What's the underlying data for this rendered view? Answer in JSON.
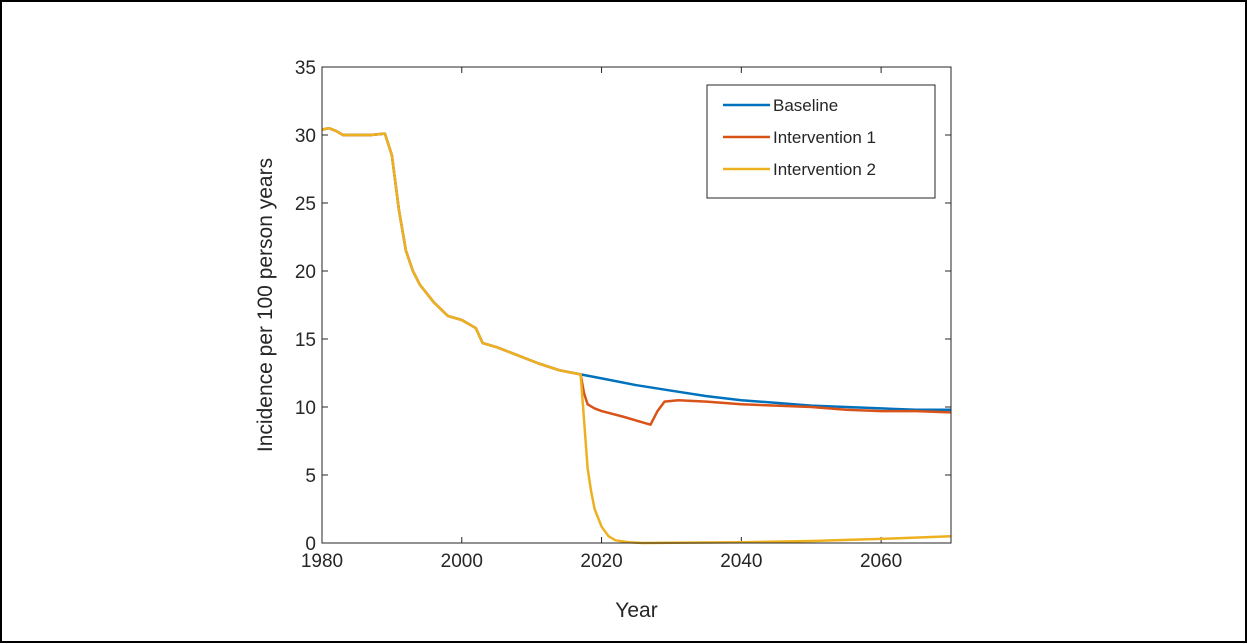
{
  "chart_data": {
    "type": "line",
    "title": "",
    "xlabel": "Year",
    "ylabel": "Incidence per 100 person years",
    "xlim": [
      1980,
      2070
    ],
    "ylim": [
      0,
      35
    ],
    "x_ticks": [
      1980,
      2000,
      2020,
      2040,
      2060
    ],
    "y_ticks": [
      0,
      5,
      10,
      15,
      20,
      25,
      30,
      35
    ],
    "x_tick_labels": [
      "1980",
      "2000",
      "2020",
      "2040",
      "2060"
    ],
    "y_tick_labels": [
      "0",
      "5",
      "10",
      "15",
      "20",
      "25",
      "30",
      "35"
    ],
    "grid": false,
    "legend_position": "top-right",
    "series": [
      {
        "name": "Baseline",
        "color": "#0072BD",
        "points": [
          [
            1980,
            30.4
          ],
          [
            1981,
            30.5
          ],
          [
            1982,
            30.3
          ],
          [
            1983,
            30.0
          ],
          [
            1985,
            30.0
          ],
          [
            1987,
            30.0
          ],
          [
            1989,
            30.1
          ],
          [
            1990,
            28.5
          ],
          [
            1991,
            24.5
          ],
          [
            1992,
            21.5
          ],
          [
            1993,
            20.0
          ],
          [
            1994,
            19.0
          ],
          [
            1996,
            17.7
          ],
          [
            1998,
            16.7
          ],
          [
            2000,
            16.4
          ],
          [
            2002,
            15.8
          ],
          [
            2003,
            14.7
          ],
          [
            2005,
            14.4
          ],
          [
            2008,
            13.8
          ],
          [
            2011,
            13.2
          ],
          [
            2014,
            12.7
          ],
          [
            2017,
            12.4
          ],
          [
            2020,
            12.1
          ],
          [
            2025,
            11.6
          ],
          [
            2030,
            11.2
          ],
          [
            2035,
            10.8
          ],
          [
            2040,
            10.5
          ],
          [
            2045,
            10.3
          ],
          [
            2050,
            10.1
          ],
          [
            2055,
            10.0
          ],
          [
            2060,
            9.9
          ],
          [
            2065,
            9.8
          ],
          [
            2070,
            9.8
          ]
        ]
      },
      {
        "name": "Intervention 1",
        "color": "#D95319",
        "points": [
          [
            1980,
            30.4
          ],
          [
            1981,
            30.5
          ],
          [
            1982,
            30.3
          ],
          [
            1983,
            30.0
          ],
          [
            1985,
            30.0
          ],
          [
            1987,
            30.0
          ],
          [
            1989,
            30.1
          ],
          [
            1990,
            28.5
          ],
          [
            1991,
            24.5
          ],
          [
            1992,
            21.5
          ],
          [
            1993,
            20.0
          ],
          [
            1994,
            19.0
          ],
          [
            1996,
            17.7
          ],
          [
            1998,
            16.7
          ],
          [
            2000,
            16.4
          ],
          [
            2002,
            15.8
          ],
          [
            2003,
            14.7
          ],
          [
            2005,
            14.4
          ],
          [
            2008,
            13.8
          ],
          [
            2011,
            13.2
          ],
          [
            2014,
            12.7
          ],
          [
            2017,
            12.4
          ],
          [
            2017.5,
            11.0
          ],
          [
            2018,
            10.2
          ],
          [
            2019,
            9.9
          ],
          [
            2020,
            9.7
          ],
          [
            2023,
            9.3
          ],
          [
            2027,
            8.7
          ],
          [
            2028,
            9.7
          ],
          [
            2029,
            10.4
          ],
          [
            2031,
            10.5
          ],
          [
            2035,
            10.4
          ],
          [
            2040,
            10.2
          ],
          [
            2045,
            10.1
          ],
          [
            2050,
            10.0
          ],
          [
            2055,
            9.8
          ],
          [
            2060,
            9.7
          ],
          [
            2065,
            9.7
          ],
          [
            2070,
            9.6
          ]
        ]
      },
      {
        "name": "Intervention 2",
        "color": "#EDB120",
        "points": [
          [
            1980,
            30.4
          ],
          [
            1981,
            30.5
          ],
          [
            1982,
            30.3
          ],
          [
            1983,
            30.0
          ],
          [
            1985,
            30.0
          ],
          [
            1987,
            30.0
          ],
          [
            1989,
            30.1
          ],
          [
            1990,
            28.5
          ],
          [
            1991,
            24.5
          ],
          [
            1992,
            21.5
          ],
          [
            1993,
            20.0
          ],
          [
            1994,
            19.0
          ],
          [
            1996,
            17.7
          ],
          [
            1998,
            16.7
          ],
          [
            2000,
            16.4
          ],
          [
            2002,
            15.8
          ],
          [
            2003,
            14.7
          ],
          [
            2005,
            14.4
          ],
          [
            2008,
            13.8
          ],
          [
            2011,
            13.2
          ],
          [
            2014,
            12.7
          ],
          [
            2017,
            12.4
          ],
          [
            2017.5,
            9.0
          ],
          [
            2018,
            5.5
          ],
          [
            2018.5,
            3.8
          ],
          [
            2019,
            2.5
          ],
          [
            2020,
            1.2
          ],
          [
            2021,
            0.5
          ],
          [
            2022,
            0.2
          ],
          [
            2024,
            0.05
          ],
          [
            2026,
            0.0
          ],
          [
            2030,
            0.02
          ],
          [
            2040,
            0.05
          ],
          [
            2050,
            0.15
          ],
          [
            2060,
            0.3
          ],
          [
            2070,
            0.5
          ]
        ]
      }
    ]
  }
}
